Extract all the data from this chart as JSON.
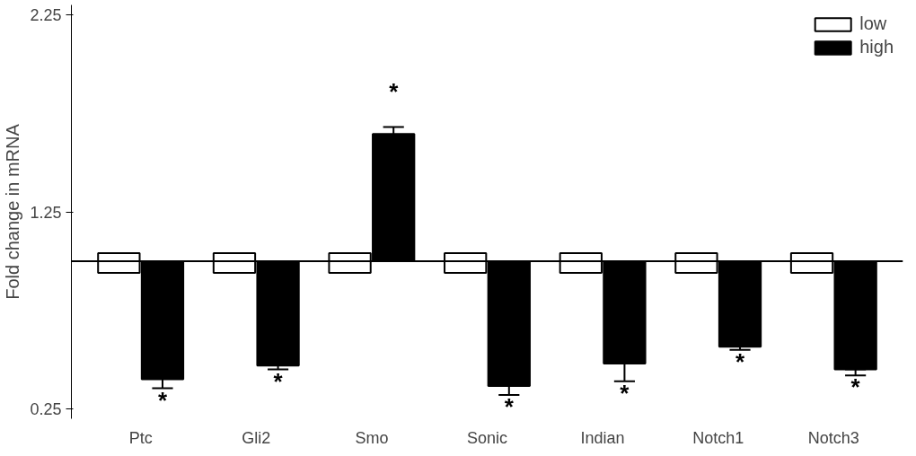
{
  "chart_data": {
    "type": "bar",
    "ylabel": "Fold change in mRNA",
    "categories": [
      "Ptc",
      "Gli2",
      "Smo",
      "Sonic",
      "Indian",
      "Notch1",
      "Notch3"
    ],
    "series": [
      {
        "name": "low",
        "color": "#ffffff",
        "base": [
          0.94,
          0.94,
          0.94,
          0.94,
          0.94,
          0.94,
          0.94
        ],
        "values": [
          0.1,
          0.1,
          0.1,
          0.1,
          0.1,
          0.1,
          0.1
        ]
      },
      {
        "name": "high",
        "color": "#000000",
        "base": [
          1,
          1,
          1,
          1,
          1,
          1,
          1
        ],
        "values": [
          -0.6,
          -0.53,
          0.645,
          -0.634,
          -0.52,
          -0.435,
          -0.55
        ],
        "errors": [
          [
            0.355,
            0.4
          ],
          [
            0.45,
            0.47
          ],
          [
            1.645,
            1.68
          ],
          [
            0.321,
            0.366
          ],
          [
            0.39,
            0.48
          ],
          [
            0.55,
            0.565
          ],
          [
            0.42,
            0.45
          ]
        ]
      }
    ],
    "ylim": [
      0.2,
      2.3
    ],
    "yticks": [
      0.25,
      1.25,
      2.25
    ],
    "ref_lines": [
      {
        "axis": "y",
        "value": 1,
        "color": "#000000"
      }
    ],
    "annotations": [
      "*",
      "*",
      "*",
      "*",
      "*",
      "*",
      "*"
    ],
    "legend": "top right",
    "grid": false
  }
}
